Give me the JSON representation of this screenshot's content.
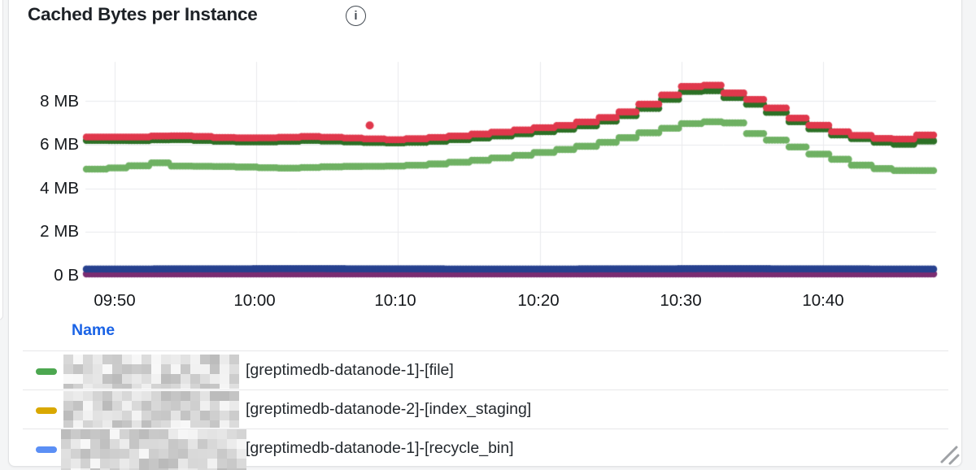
{
  "panel": {
    "title": "Cached Bytes per Instance",
    "info_glyph": "i"
  },
  "chart_data": {
    "type": "line",
    "style": "dotted-step-scatter",
    "title": "Cached Bytes per Instance",
    "grid": true,
    "legend_position": "bottom-table",
    "x_axis": {
      "ticks": [
        "09:50",
        "10:00",
        "10:10",
        "10:20",
        "10:30",
        "10:40"
      ],
      "tick_offsets_min": [
        2,
        12,
        22,
        32,
        42,
        52
      ],
      "range_min": [
        0,
        60
      ]
    },
    "y_axis": {
      "ticks": [
        "0 B",
        "2 MB",
        "4 MB",
        "6 MB",
        "8 MB"
      ],
      "tick_values_mb": [
        0,
        2,
        4,
        6,
        8
      ],
      "range_mb": [
        0,
        9.4
      ],
      "unit": "bytes"
    },
    "grid_color": "#e9eaec",
    "series": [
      {
        "name": "purple-flat-series",
        "color": "#7B2D72",
        "step_min": 0,
        "radius": 4.4,
        "points": [
          [
            0,
            0.08
          ],
          [
            60,
            0.08
          ]
        ]
      },
      {
        "name": "navy-flat-series",
        "color": "#27418F",
        "step_min": 0,
        "radius": 4.4,
        "points": [
          [
            0,
            0.3
          ],
          [
            15,
            0.32
          ],
          [
            30,
            0.3
          ],
          [
            45,
            0.32
          ],
          [
            60,
            0.3
          ]
        ]
      },
      {
        "name": "light-green-series",
        "color": "#6FB163",
        "step_min": 1.5,
        "radius": 4.3,
        "points": [
          [
            0,
            4.85
          ],
          [
            2,
            4.92
          ],
          [
            4,
            5.05
          ],
          [
            5,
            5.22
          ],
          [
            6,
            5.02
          ],
          [
            10,
            5.0
          ],
          [
            12,
            4.96
          ],
          [
            14,
            4.92
          ],
          [
            16,
            4.96
          ],
          [
            18,
            5.0
          ],
          [
            22,
            5.02
          ],
          [
            24,
            5.08
          ],
          [
            26,
            5.18
          ],
          [
            28,
            5.3
          ],
          [
            30,
            5.45
          ],
          [
            32,
            5.62
          ],
          [
            34,
            5.8
          ],
          [
            36,
            6.0
          ],
          [
            38,
            6.28
          ],
          [
            40,
            6.58
          ],
          [
            41,
            6.72
          ],
          [
            42,
            6.85
          ],
          [
            43,
            7.0
          ],
          [
            44,
            7.05
          ],
          [
            45,
            7.05
          ],
          [
            46,
            6.98
          ],
          [
            47,
            6.55
          ],
          [
            48,
            6.38
          ],
          [
            49,
            6.15
          ],
          [
            50,
            5.95
          ],
          [
            51,
            5.72
          ],
          [
            52,
            5.52
          ],
          [
            53,
            5.38
          ],
          [
            54,
            5.18
          ],
          [
            55,
            5.02
          ],
          [
            56,
            4.92
          ],
          [
            57,
            4.85
          ],
          [
            58,
            4.8
          ],
          [
            59,
            4.8
          ],
          [
            60,
            4.85
          ]
        ]
      },
      {
        "name": "dark-green-series",
        "color": "#2D7026",
        "step_min": 1.5,
        "radius": 4.3,
        "points": [
          [
            0,
            6.2
          ],
          [
            4,
            6.18
          ],
          [
            6,
            6.25
          ],
          [
            8,
            6.2
          ],
          [
            10,
            6.15
          ],
          [
            12,
            6.12
          ],
          [
            14,
            6.15
          ],
          [
            16,
            6.2
          ],
          [
            18,
            6.15
          ],
          [
            20,
            6.1
          ],
          [
            22,
            6.08
          ],
          [
            24,
            6.12
          ],
          [
            26,
            6.22
          ],
          [
            28,
            6.32
          ],
          [
            30,
            6.45
          ],
          [
            32,
            6.58
          ],
          [
            34,
            6.72
          ],
          [
            36,
            6.95
          ],
          [
            38,
            7.28
          ],
          [
            39,
            7.48
          ],
          [
            40,
            7.72
          ],
          [
            41,
            8.0
          ],
          [
            42,
            8.3
          ],
          [
            43,
            8.48
          ],
          [
            44,
            8.52
          ],
          [
            45,
            8.32
          ],
          [
            46,
            8.1
          ],
          [
            47,
            7.9
          ],
          [
            48,
            7.7
          ],
          [
            49,
            7.4
          ],
          [
            50,
            7.12
          ],
          [
            51,
            6.85
          ],
          [
            52,
            6.68
          ],
          [
            53,
            6.48
          ],
          [
            54,
            6.35
          ],
          [
            55,
            6.25
          ],
          [
            56,
            6.15
          ],
          [
            57,
            6.0
          ],
          [
            58,
            6.02
          ],
          [
            59,
            6.15
          ],
          [
            60,
            6.22
          ]
        ]
      },
      {
        "name": "red-series",
        "color": "#E0384C",
        "step_min": 1.5,
        "radius": 4.3,
        "outlier": [
          20.0,
          6.88
        ],
        "points": [
          [
            0,
            6.35
          ],
          [
            4,
            6.35
          ],
          [
            6,
            6.42
          ],
          [
            8,
            6.38
          ],
          [
            10,
            6.32
          ],
          [
            12,
            6.3
          ],
          [
            14,
            6.33
          ],
          [
            16,
            6.38
          ],
          [
            18,
            6.32
          ],
          [
            20,
            6.27
          ],
          [
            22,
            6.22
          ],
          [
            24,
            6.3
          ],
          [
            26,
            6.38
          ],
          [
            28,
            6.5
          ],
          [
            30,
            6.62
          ],
          [
            32,
            6.76
          ],
          [
            34,
            6.9
          ],
          [
            36,
            7.12
          ],
          [
            38,
            7.45
          ],
          [
            39,
            7.65
          ],
          [
            40,
            7.92
          ],
          [
            41,
            8.2
          ],
          [
            42,
            8.5
          ],
          [
            43,
            8.72
          ],
          [
            44,
            8.78
          ],
          [
            45,
            8.56
          ],
          [
            46,
            8.3
          ],
          [
            47,
            8.12
          ],
          [
            48,
            7.92
          ],
          [
            49,
            7.6
          ],
          [
            50,
            7.28
          ],
          [
            51,
            7.02
          ],
          [
            52,
            6.85
          ],
          [
            53,
            6.62
          ],
          [
            54,
            6.5
          ],
          [
            55,
            6.4
          ],
          [
            56,
            6.3
          ],
          [
            57,
            6.25
          ],
          [
            58,
            6.26
          ],
          [
            59,
            6.42
          ],
          [
            60,
            6.5
          ]
        ]
      }
    ]
  },
  "legend": {
    "header": "Name",
    "rows": [
      {
        "color": "#4CA750",
        "redacted_prefix": true,
        "label": "[greptimedb-datanode-1]-[file]"
      },
      {
        "color": "#D9A800",
        "redacted_prefix": true,
        "label": "[greptimedb-datanode-2]-[index_staging]"
      },
      {
        "color": "#5B8FF5",
        "redacted_prefix": true,
        "label": "[greptimedb-datanode-1]-[recycle_bin]"
      }
    ]
  }
}
